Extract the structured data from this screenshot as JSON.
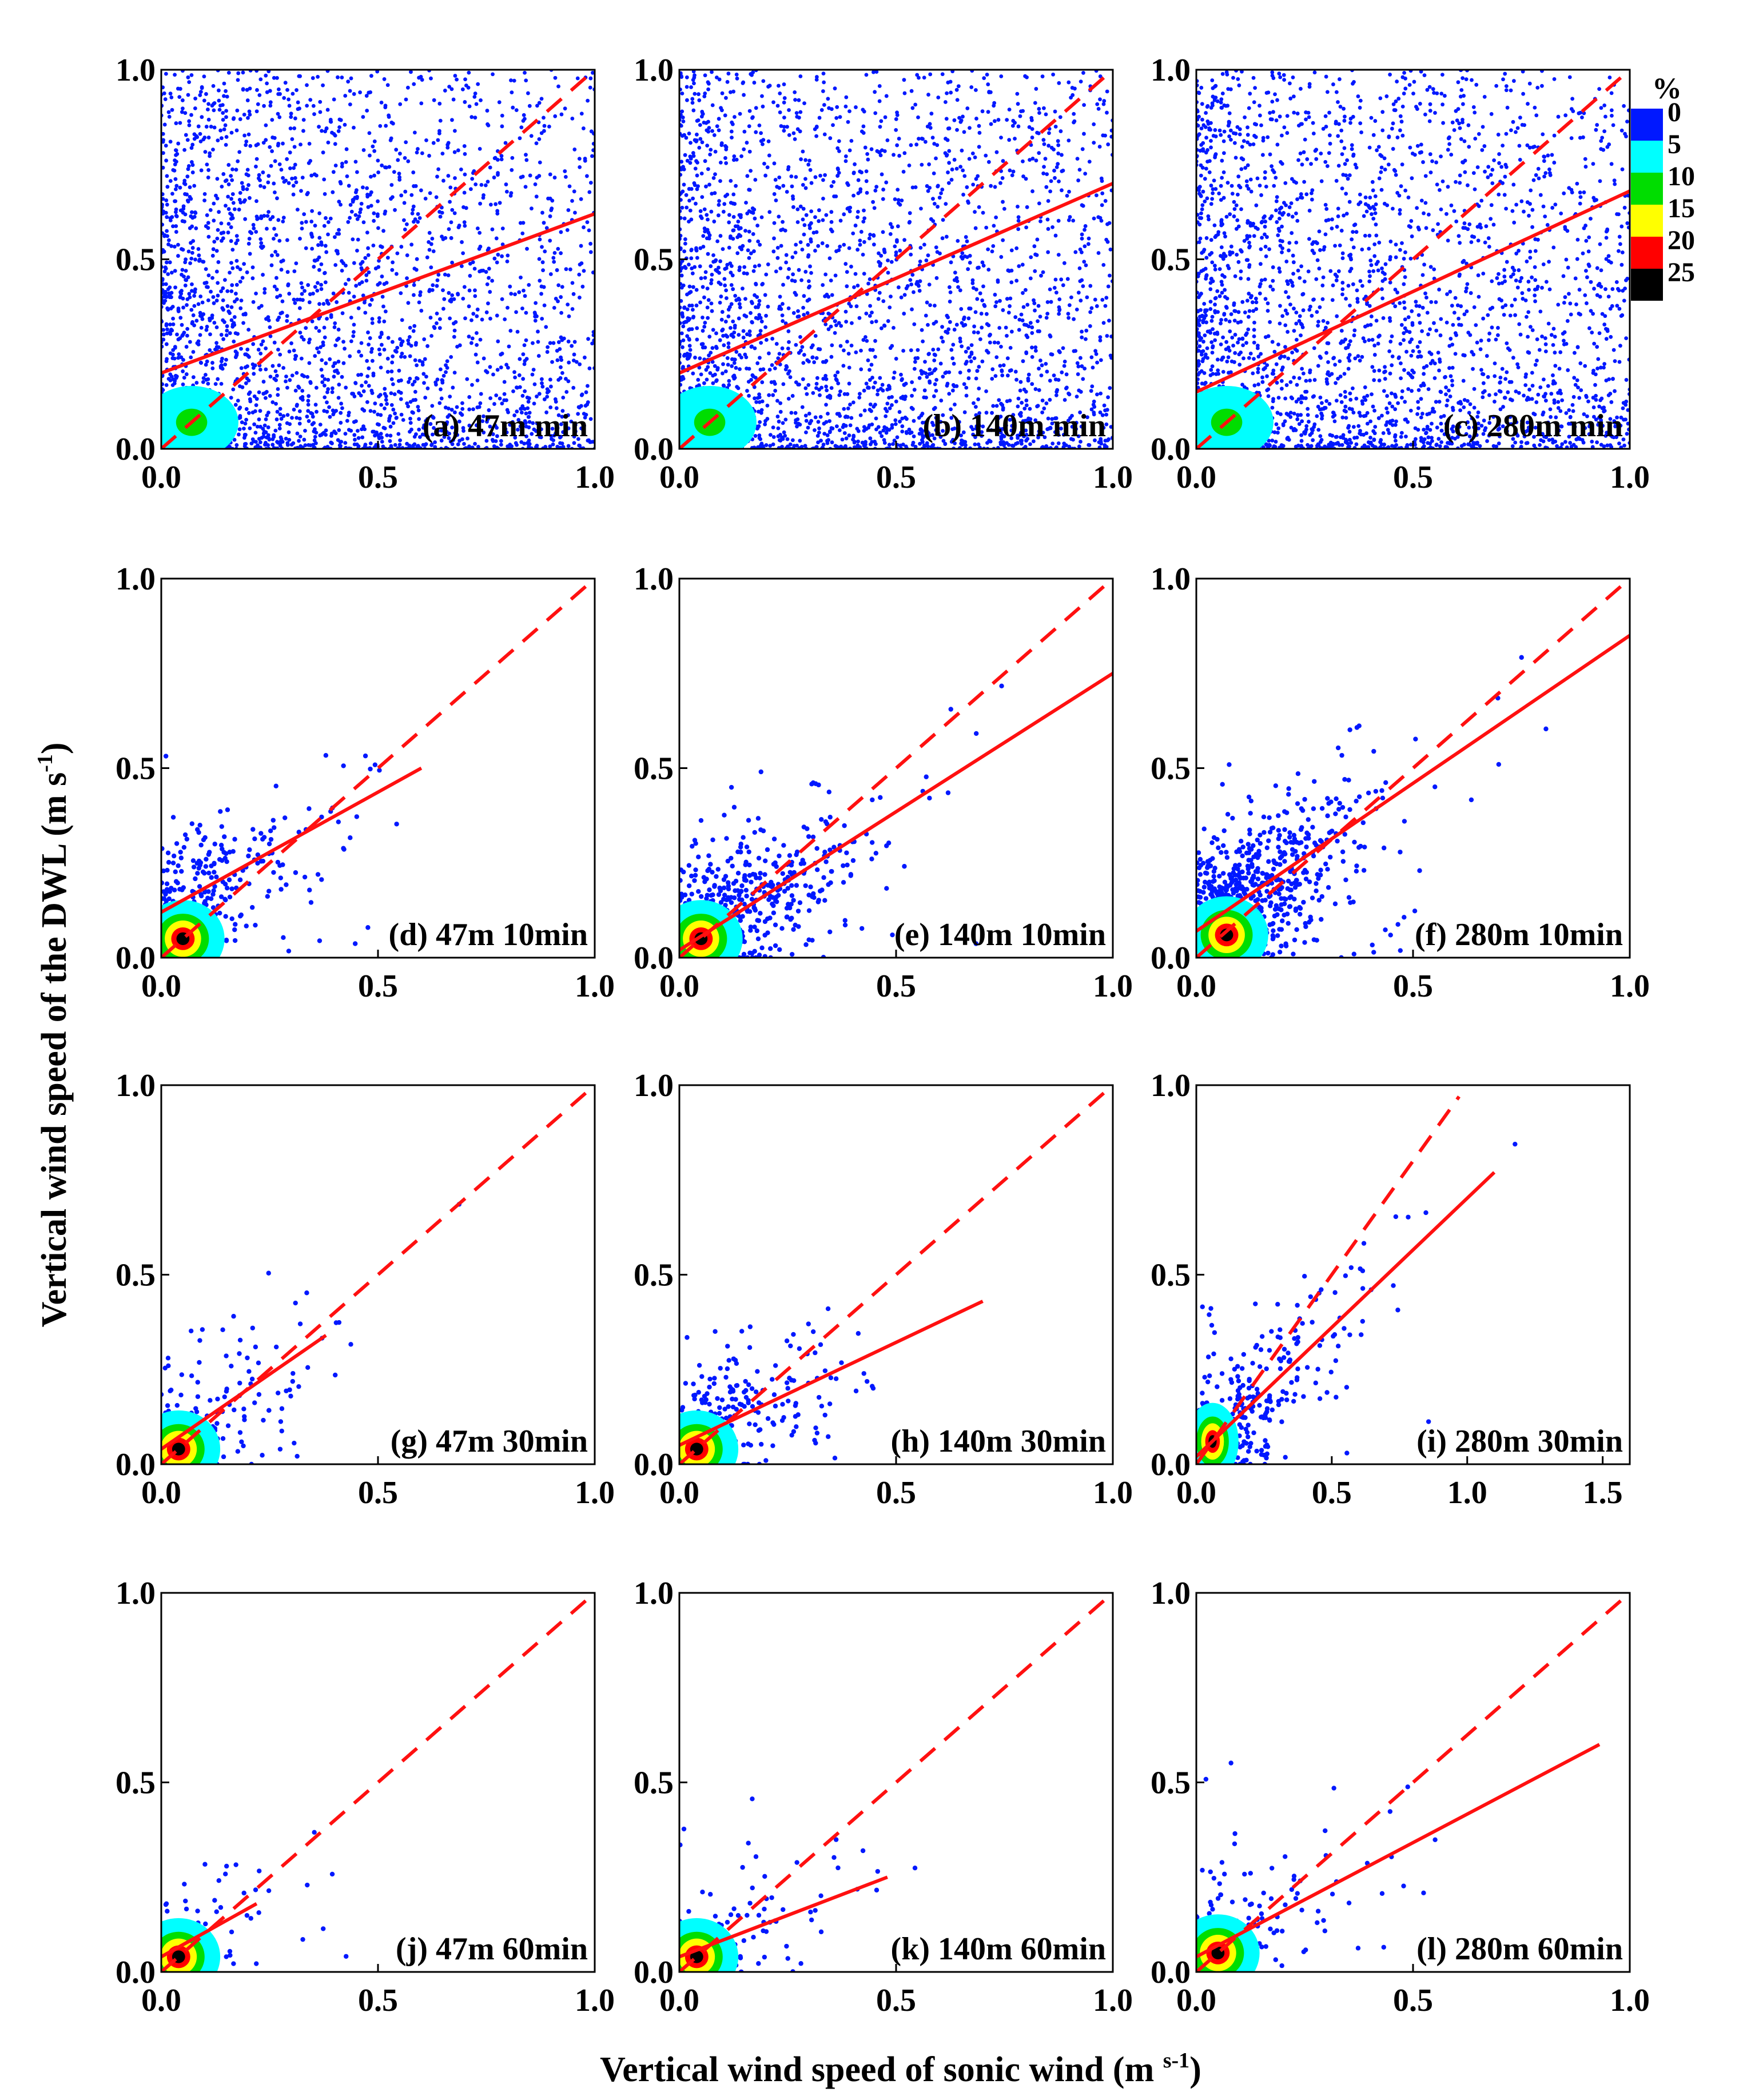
{
  "figure": {
    "ylabel_main": "Vertical wind speed of the DWL (m s",
    "ylabel_sup": "-1",
    "ylabel_close": ")",
    "xlabel_main": "Vertical wind speed of sonic wind (m ",
    "xlabel_sup": "s-1",
    "xlabel_close": ")"
  },
  "legend": {
    "title": "%",
    "colors": [
      "#0018ff",
      "#00ffff",
      "#00dd00",
      "#ffff00",
      "#ff0000",
      "#000000"
    ],
    "labels": [
      "0",
      "5",
      "10",
      "15",
      "20",
      "25"
    ]
  },
  "chart_data": [
    {
      "id": "a",
      "type": "scatter",
      "label": "(a) 47m min",
      "xlim": [
        0,
        1
      ],
      "ylim": [
        0,
        1
      ],
      "xticks": [
        "0.0",
        "0.5",
        "1.0"
      ],
      "yticks": [
        "0.0",
        "0.5",
        "1.0"
      ],
      "fit": {
        "x": [
          0,
          1
        ],
        "y": [
          0.2,
          0.62
        ]
      },
      "one_to_one": {
        "x": [
          0,
          1
        ],
        "y": [
          0,
          1
        ]
      },
      "density": "dense",
      "core": [
        0.07,
        0.07
      ],
      "n_points": 2600
    },
    {
      "id": "b",
      "type": "scatter",
      "label": "(b) 140m min",
      "xlim": [
        0,
        1
      ],
      "ylim": [
        0,
        1
      ],
      "xticks": [
        "0.0",
        "0.5",
        "1.0"
      ],
      "yticks": [
        "0.0",
        "0.5",
        "1.0"
      ],
      "fit": {
        "x": [
          0,
          1
        ],
        "y": [
          0.2,
          0.7
        ]
      },
      "one_to_one": {
        "x": [
          0,
          1
        ],
        "y": [
          0,
          1
        ]
      },
      "density": "dense",
      "core": [
        0.07,
        0.07
      ],
      "n_points": 2600
    },
    {
      "id": "c",
      "type": "scatter",
      "label": "(c) 280m min",
      "xlim": [
        0,
        1
      ],
      "ylim": [
        0,
        1
      ],
      "xticks": [
        "0.0",
        "0.5",
        "1.0"
      ],
      "yticks": [
        "0.0",
        "0.5",
        "1.0"
      ],
      "fit": {
        "x": [
          0,
          1
        ],
        "y": [
          0.15,
          0.68
        ]
      },
      "one_to_one": {
        "x": [
          0,
          1
        ],
        "y": [
          0,
          1
        ]
      },
      "density": "dense",
      "core": [
        0.07,
        0.07
      ],
      "n_points": 2600
    },
    {
      "id": "d",
      "type": "scatter",
      "label": "(d) 47m 10min",
      "xlim": [
        0,
        1
      ],
      "ylim": [
        0,
        1
      ],
      "xticks": [
        "0.0",
        "0.5",
        "1.0"
      ],
      "yticks": [
        "0.0",
        "0.5",
        "1.0"
      ],
      "fit": {
        "x": [
          0,
          0.6
        ],
        "y": [
          0.12,
          0.5
        ]
      },
      "one_to_one": {
        "x": [
          0,
          1
        ],
        "y": [
          0,
          1
        ]
      },
      "density": "sparse",
      "core": [
        0.05,
        0.05
      ],
      "n_points": 260
    },
    {
      "id": "e",
      "type": "scatter",
      "label": "(e) 140m 10min",
      "xlim": [
        0,
        1
      ],
      "ylim": [
        0,
        1
      ],
      "xticks": [
        "0.0",
        "0.5",
        "1.0"
      ],
      "yticks": [
        "0.0",
        "0.5",
        "1.0"
      ],
      "fit": {
        "x": [
          0,
          1
        ],
        "y": [
          0.02,
          0.75
        ]
      },
      "one_to_one": {
        "x": [
          0,
          1
        ],
        "y": [
          0,
          1
        ]
      },
      "density": "sparse",
      "core": [
        0.05,
        0.05
      ],
      "n_points": 520
    },
    {
      "id": "f",
      "type": "scatter",
      "label": "(f) 280m 10min",
      "xlim": [
        0,
        1
      ],
      "ylim": [
        0,
        1
      ],
      "xticks": [
        "0.0",
        "0.5",
        "1.0"
      ],
      "yticks": [
        "0.0",
        "0.5",
        "1.0"
      ],
      "fit": {
        "x": [
          0,
          1
        ],
        "y": [
          0.07,
          0.85
        ]
      },
      "one_to_one": {
        "x": [
          0,
          1
        ],
        "y": [
          0,
          1
        ]
      },
      "density": "sparse",
      "core": [
        0.07,
        0.06
      ],
      "n_points": 720
    },
    {
      "id": "g",
      "type": "scatter",
      "label": "(g) 47m 30min",
      "xlim": [
        0,
        1
      ],
      "ylim": [
        0,
        1
      ],
      "xticks": [
        "0.0",
        "0.5",
        "1.0"
      ],
      "yticks": [
        "0.0",
        "0.5",
        "1.0"
      ],
      "fit": {
        "x": [
          0,
          0.38
        ],
        "y": [
          0.04,
          0.34
        ]
      },
      "one_to_one": {
        "x": [
          0,
          1
        ],
        "y": [
          0,
          1
        ]
      },
      "density": "sparse",
      "core": [
        0.04,
        0.04
      ],
      "n_points": 150
    },
    {
      "id": "h",
      "type": "scatter",
      "label": "(h) 140m 30min",
      "xlim": [
        0,
        1
      ],
      "ylim": [
        0,
        1
      ],
      "xticks": [
        "0.0",
        "0.5",
        "1.0"
      ],
      "yticks": [
        "0.0",
        "0.5",
        "1.0"
      ],
      "fit": {
        "x": [
          0,
          0.7
        ],
        "y": [
          0.05,
          0.43
        ]
      },
      "one_to_one": {
        "x": [
          0,
          1
        ],
        "y": [
          0,
          1
        ]
      },
      "density": "sparse",
      "core": [
        0.04,
        0.04
      ],
      "n_points": 220
    },
    {
      "id": "i",
      "type": "scatter",
      "label": "(i) 280m 30min",
      "xlim": [
        0,
        1.6
      ],
      "ylim": [
        0,
        1
      ],
      "xticks": [
        "0.0",
        "0.5",
        "1.0",
        "1.5"
      ],
      "yticks": [
        "0.0",
        "0.5",
        "1.0"
      ],
      "fit": {
        "x": [
          0,
          1.1
        ],
        "y": [
          0.02,
          0.77
        ]
      },
      "one_to_one": {
        "x": [
          0,
          0.97
        ],
        "y": [
          0,
          0.97
        ]
      },
      "density": "sparse",
      "core": [
        0.06,
        0.06
      ],
      "n_points": 300
    },
    {
      "id": "j",
      "type": "scatter",
      "label": "(j) 47m 60min",
      "xlim": [
        0,
        1
      ],
      "ylim": [
        0,
        1
      ],
      "xticks": [
        "0.0",
        "0.5",
        "1.0"
      ],
      "yticks": [
        "0.0",
        "0.5",
        "1.0"
      ],
      "fit": {
        "x": [
          0,
          0.22
        ],
        "y": [
          0.04,
          0.18
        ]
      },
      "one_to_one": {
        "x": [
          0,
          1
        ],
        "y": [
          0,
          1
        ]
      },
      "density": "sparse",
      "core": [
        0.04,
        0.04
      ],
      "n_points": 60
    },
    {
      "id": "k",
      "type": "scatter",
      "label": "(k) 140m 60min",
      "xlim": [
        0,
        1
      ],
      "ylim": [
        0,
        1
      ],
      "xticks": [
        "0.0",
        "0.5",
        "1.0"
      ],
      "yticks": [
        "0.0",
        "0.5",
        "1.0"
      ],
      "fit": {
        "x": [
          0,
          0.48
        ],
        "y": [
          0.04,
          0.25
        ]
      },
      "one_to_one": {
        "x": [
          0,
          1
        ],
        "y": [
          0,
          1
        ]
      },
      "density": "sparse",
      "core": [
        0.04,
        0.04
      ],
      "n_points": 90
    },
    {
      "id": "l",
      "type": "scatter",
      "label": "(l) 280m 60min",
      "xlim": [
        0,
        1
      ],
      "ylim": [
        0,
        1
      ],
      "xticks": [
        "0.0",
        "0.5",
        "1.0"
      ],
      "yticks": [
        "0.0",
        "0.5",
        "1.0"
      ],
      "fit": {
        "x": [
          0,
          0.93
        ],
        "y": [
          0.04,
          0.6
        ]
      },
      "one_to_one": {
        "x": [
          0,
          1
        ],
        "y": [
          0,
          1
        ]
      },
      "density": "sparse",
      "core": [
        0.05,
        0.05
      ],
      "n_points": 130
    }
  ]
}
